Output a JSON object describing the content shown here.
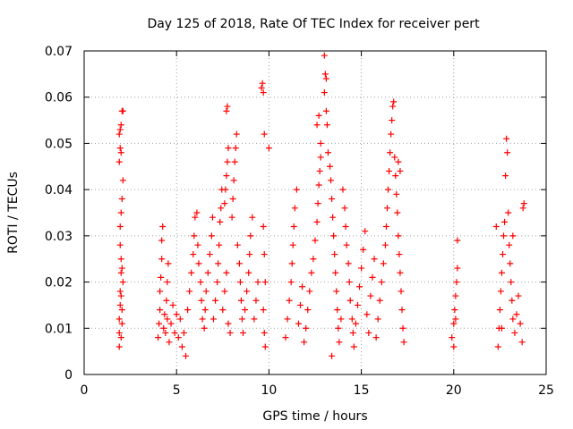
{
  "chart_data": {
    "type": "scatter",
    "title": "Day 125 of 2018, Rate Of TEC Index for receiver pert",
    "xlabel": "GPS time / hours",
    "ylabel": "ROTI / TECUs",
    "xlim": [
      0,
      25
    ],
    "ylim": [
      0,
      0.07
    ],
    "x_ticks": [
      0,
      5,
      10,
      15,
      20,
      25
    ],
    "x_tick_labels": [
      "0",
      "5",
      "10",
      "15",
      "20",
      "25"
    ],
    "y_ticks": [
      0,
      0.01,
      0.02,
      0.03,
      0.04,
      0.05,
      0.06,
      0.07
    ],
    "y_tick_labels": [
      "0",
      "0.01",
      "0.02",
      "0.03",
      "0.04",
      "0.05",
      "0.06",
      "0.07"
    ],
    "grid": true,
    "marker": "+",
    "marker_color": "#ff0000",
    "series": [
      {
        "name": "ROTI",
        "points": [
          [
            1.9,
            0.006
          ],
          [
            1.9,
            0.009
          ],
          [
            1.9,
            0.012
          ],
          [
            1.95,
            0.015
          ],
          [
            1.95,
            0.018
          ],
          [
            2.0,
            0.022
          ],
          [
            2.0,
            0.025
          ],
          [
            1.95,
            0.028
          ],
          [
            2.0,
            0.008
          ],
          [
            2.05,
            0.011
          ],
          [
            2.05,
            0.014
          ],
          [
            2.0,
            0.017
          ],
          [
            2.1,
            0.02
          ],
          [
            2.05,
            0.023
          ],
          [
            1.95,
            0.032
          ],
          [
            2.0,
            0.035
          ],
          [
            2.05,
            0.038
          ],
          [
            2.1,
            0.042
          ],
          [
            1.9,
            0.046
          ],
          [
            1.95,
            0.049
          ],
          [
            1.9,
            0.052
          ],
          [
            2.0,
            0.054
          ],
          [
            2.05,
            0.057
          ],
          [
            2.1,
            0.057
          ],
          [
            1.95,
            0.053
          ],
          [
            2.0,
            0.048
          ],
          [
            4.0,
            0.008
          ],
          [
            4.05,
            0.011
          ],
          [
            4.1,
            0.014
          ],
          [
            4.1,
            0.018
          ],
          [
            4.15,
            0.021
          ],
          [
            4.2,
            0.025
          ],
          [
            4.2,
            0.029
          ],
          [
            4.25,
            0.032
          ],
          [
            4.3,
            0.01
          ],
          [
            4.35,
            0.013
          ],
          [
            4.4,
            0.009
          ],
          [
            4.45,
            0.016
          ],
          [
            4.5,
            0.012
          ],
          [
            4.5,
            0.02
          ],
          [
            4.55,
            0.024
          ],
          [
            4.6,
            0.007
          ],
          [
            4.7,
            0.011
          ],
          [
            4.8,
            0.015
          ],
          [
            4.9,
            0.009
          ],
          [
            5.0,
            0.013
          ],
          [
            5.1,
            0.008
          ],
          [
            5.2,
            0.012
          ],
          [
            5.3,
            0.006
          ],
          [
            5.4,
            0.009
          ],
          [
            5.5,
            0.004
          ],
          [
            5.6,
            0.014
          ],
          [
            5.7,
            0.018
          ],
          [
            5.8,
            0.022
          ],
          [
            5.9,
            0.026
          ],
          [
            5.95,
            0.03
          ],
          [
            6.0,
            0.034
          ],
          [
            6.1,
            0.035
          ],
          [
            6.15,
            0.028
          ],
          [
            6.2,
            0.024
          ],
          [
            6.3,
            0.02
          ],
          [
            6.35,
            0.016
          ],
          [
            6.4,
            0.012
          ],
          [
            6.5,
            0.01
          ],
          [
            6.55,
            0.014
          ],
          [
            6.6,
            0.018
          ],
          [
            6.7,
            0.022
          ],
          [
            6.8,
            0.026
          ],
          [
            6.9,
            0.03
          ],
          [
            6.95,
            0.034
          ],
          [
            7.0,
            0.012
          ],
          [
            7.1,
            0.016
          ],
          [
            7.2,
            0.02
          ],
          [
            7.25,
            0.024
          ],
          [
            7.3,
            0.028
          ],
          [
            7.35,
            0.033
          ],
          [
            7.4,
            0.036
          ],
          [
            7.45,
            0.04
          ],
          [
            7.5,
            0.014
          ],
          [
            7.6,
            0.018
          ],
          [
            7.7,
            0.022
          ],
          [
            7.8,
            0.011
          ],
          [
            7.9,
            0.009
          ],
          [
            7.6,
            0.037
          ],
          [
            7.65,
            0.04
          ],
          [
            7.7,
            0.043
          ],
          [
            7.75,
            0.046
          ],
          [
            7.8,
            0.049
          ],
          [
            7.7,
            0.057
          ],
          [
            7.75,
            0.058
          ],
          [
            8.0,
            0.034
          ],
          [
            8.05,
            0.038
          ],
          [
            8.1,
            0.042
          ],
          [
            8.15,
            0.046
          ],
          [
            8.2,
            0.049
          ],
          [
            8.25,
            0.052
          ],
          [
            8.3,
            0.028
          ],
          [
            8.4,
            0.024
          ],
          [
            8.45,
            0.02
          ],
          [
            8.5,
            0.016
          ],
          [
            8.55,
            0.012
          ],
          [
            8.6,
            0.009
          ],
          [
            8.7,
            0.014
          ],
          [
            8.8,
            0.018
          ],
          [
            8.9,
            0.022
          ],
          [
            8.95,
            0.026
          ],
          [
            9.0,
            0.03
          ],
          [
            9.1,
            0.034
          ],
          [
            9.2,
            0.012
          ],
          [
            9.3,
            0.016
          ],
          [
            9.4,
            0.02
          ],
          [
            9.6,
            0.062
          ],
          [
            9.65,
            0.063
          ],
          [
            9.7,
            0.061
          ],
          [
            9.75,
            0.052
          ],
          [
            9.7,
            0.032
          ],
          [
            9.75,
            0.026
          ],
          [
            9.8,
            0.02
          ],
          [
            9.7,
            0.014
          ],
          [
            9.75,
            0.009
          ],
          [
            9.8,
            0.006
          ],
          [
            10.0,
            0.049
          ],
          [
            10.9,
            0.008
          ],
          [
            11.0,
            0.012
          ],
          [
            11.1,
            0.016
          ],
          [
            11.2,
            0.02
          ],
          [
            11.25,
            0.024
          ],
          [
            11.3,
            0.028
          ],
          [
            11.35,
            0.032
          ],
          [
            11.4,
            0.036
          ],
          [
            11.5,
            0.04
          ],
          [
            11.6,
            0.011
          ],
          [
            11.7,
            0.015
          ],
          [
            11.8,
            0.019
          ],
          [
            11.9,
            0.007
          ],
          [
            12.0,
            0.01
          ],
          [
            12.1,
            0.014
          ],
          [
            12.2,
            0.018
          ],
          [
            12.3,
            0.022
          ],
          [
            12.4,
            0.025
          ],
          [
            12.5,
            0.029
          ],
          [
            12.6,
            0.033
          ],
          [
            12.65,
            0.037
          ],
          [
            12.7,
            0.041
          ],
          [
            12.75,
            0.044
          ],
          [
            12.8,
            0.047
          ],
          [
            12.6,
            0.054
          ],
          [
            12.7,
            0.056
          ],
          [
            12.8,
            0.05
          ],
          [
            13.0,
            0.069
          ],
          [
            13.05,
            0.065
          ],
          [
            13.1,
            0.064
          ],
          [
            13.0,
            0.061
          ],
          [
            13.1,
            0.057
          ],
          [
            13.15,
            0.054
          ],
          [
            13.2,
            0.048
          ],
          [
            13.3,
            0.045
          ],
          [
            13.35,
            0.042
          ],
          [
            13.4,
            0.038
          ],
          [
            13.45,
            0.034
          ],
          [
            13.5,
            0.03
          ],
          [
            13.55,
            0.026
          ],
          [
            13.6,
            0.022
          ],
          [
            13.65,
            0.018
          ],
          [
            13.7,
            0.014
          ],
          [
            13.75,
            0.01
          ],
          [
            13.8,
            0.007
          ],
          [
            13.4,
            0.004
          ],
          [
            13.9,
            0.012
          ],
          [
            14.0,
            0.04
          ],
          [
            14.1,
            0.036
          ],
          [
            14.15,
            0.032
          ],
          [
            14.2,
            0.028
          ],
          [
            14.3,
            0.024
          ],
          [
            14.35,
            0.02
          ],
          [
            14.4,
            0.016
          ],
          [
            14.5,
            0.012
          ],
          [
            14.55,
            0.009
          ],
          [
            14.6,
            0.006
          ],
          [
            14.7,
            0.011
          ],
          [
            14.8,
            0.015
          ],
          [
            14.9,
            0.019
          ],
          [
            15.0,
            0.023
          ],
          [
            15.1,
            0.027
          ],
          [
            15.2,
            0.031
          ],
          [
            15.3,
            0.013
          ],
          [
            15.4,
            0.009
          ],
          [
            15.5,
            0.017
          ],
          [
            15.6,
            0.021
          ],
          [
            15.7,
            0.025
          ],
          [
            15.8,
            0.008
          ],
          [
            15.9,
            0.012
          ],
          [
            16.0,
            0.016
          ],
          [
            16.1,
            0.02
          ],
          [
            16.2,
            0.024
          ],
          [
            16.3,
            0.028
          ],
          [
            16.35,
            0.032
          ],
          [
            16.4,
            0.036
          ],
          [
            16.45,
            0.04
          ],
          [
            16.5,
            0.044
          ],
          [
            16.55,
            0.048
          ],
          [
            16.6,
            0.052
          ],
          [
            16.65,
            0.055
          ],
          [
            16.7,
            0.058
          ],
          [
            16.75,
            0.059
          ],
          [
            16.8,
            0.047
          ],
          [
            16.85,
            0.043
          ],
          [
            16.9,
            0.039
          ],
          [
            16.95,
            0.035
          ],
          [
            17.0,
            0.03
          ],
          [
            17.05,
            0.026
          ],
          [
            17.1,
            0.022
          ],
          [
            17.15,
            0.018
          ],
          [
            17.2,
            0.014
          ],
          [
            17.25,
            0.01
          ],
          [
            17.3,
            0.007
          ],
          [
            17.0,
            0.046
          ],
          [
            17.1,
            0.044
          ],
          [
            19.9,
            0.008
          ],
          [
            20.0,
            0.011
          ],
          [
            20.05,
            0.014
          ],
          [
            20.1,
            0.017
          ],
          [
            20.15,
            0.02
          ],
          [
            20.2,
            0.023
          ],
          [
            20.0,
            0.006
          ],
          [
            20.2,
            0.029
          ],
          [
            20.1,
            0.012
          ],
          [
            22.3,
            0.032
          ],
          [
            22.4,
            0.006
          ],
          [
            22.45,
            0.01
          ],
          [
            22.5,
            0.014
          ],
          [
            22.55,
            0.018
          ],
          [
            22.6,
            0.022
          ],
          [
            22.65,
            0.026
          ],
          [
            22.7,
            0.03
          ],
          [
            22.75,
            0.033
          ],
          [
            22.8,
            0.043
          ],
          [
            22.85,
            0.051
          ],
          [
            22.9,
            0.048
          ],
          [
            22.95,
            0.035
          ],
          [
            23.0,
            0.028
          ],
          [
            23.05,
            0.024
          ],
          [
            23.1,
            0.02
          ],
          [
            23.15,
            0.016
          ],
          [
            23.2,
            0.012
          ],
          [
            23.3,
            0.009
          ],
          [
            23.4,
            0.013
          ],
          [
            23.5,
            0.017
          ],
          [
            23.6,
            0.011
          ],
          [
            23.7,
            0.007
          ],
          [
            23.75,
            0.036
          ],
          [
            23.8,
            0.037
          ],
          [
            23.2,
            0.03
          ],
          [
            22.6,
            0.01
          ]
        ]
      }
    ]
  }
}
